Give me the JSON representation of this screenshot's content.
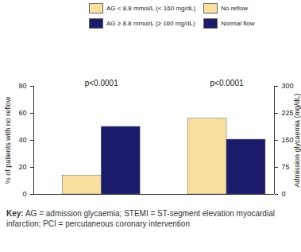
{
  "chart_data": {
    "type": "bar",
    "categories": [
      null,
      null
    ],
    "series": [
      {
        "name": "AG < 8.8 mmol/L (< 160 mg/dL)",
        "color": "#f9dfa0",
        "values": [
          14,
          null
        ]
      },
      {
        "name": "AG ≥ 8.8 mmol/L (≥ 160 mg/dL)",
        "color": "#1c1a6b",
        "values": [
          50,
          null
        ]
      },
      {
        "name": "No reflow",
        "color": "#f9dfa0",
        "values": [
          null,
          210
        ],
        "axis": "y2"
      },
      {
        "name": "Normal flow",
        "color": "#1c1a6b",
        "values": [
          null,
          152
        ],
        "axis": "y2"
      }
    ],
    "ylabel": "% of patients with no reflow",
    "y2label": "Admission glycaemia (mg/dL)",
    "ylim": [
      0,
      80
    ],
    "yticks": [
      0,
      20,
      40,
      60,
      80
    ],
    "y2lim": [
      0,
      300
    ],
    "y2ticks": [
      0,
      75,
      150,
      225,
      300
    ],
    "annotations": [
      "p<0.0001",
      "p<0.0001"
    ],
    "caption": "Key: AG = admission glycaemia; STEMI = ST-segment elevation myocardial infarction; PCI = percutaneous coronary intervention",
    "legend": "top",
    "grid": false
  }
}
